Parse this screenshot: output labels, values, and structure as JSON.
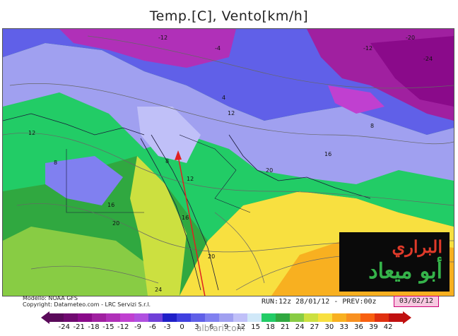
{
  "title": "Temp.[C], Vento[km/h]",
  "credits": {
    "line1": "Modello: NOAA GFS",
    "line2": "Copyright: Datameteo.com - LRC Servizi S.r.l."
  },
  "run_info": "RUN:12z 28/01/12 - PREV:00z",
  "valid_date": "03/02/12",
  "logo": {
    "line1": "البراري",
    "line2": "أبو ميعاد"
  },
  "watermark": "albrari.com",
  "legend": {
    "ticks": [
      "-24",
      "-21",
      "-18",
      "-15",
      "-12",
      "-9",
      "-6",
      "-3",
      "0",
      "3",
      "6",
      "9",
      "12",
      "15",
      "18",
      "21",
      "24",
      "27",
      "30",
      "33",
      "36",
      "39",
      "42"
    ],
    "colors": [
      "#5a0a5a",
      "#700a70",
      "#8a0a8a",
      "#a020a0",
      "#b030b8",
      "#c040d0",
      "#b050e0",
      "#7040d8",
      "#2020c8",
      "#4040e0",
      "#6060e8",
      "#8080f0",
      "#a0a0f0",
      "#c0c0f8",
      "#d0e8f8",
      "#22cc66",
      "#30a840",
      "#88cc44",
      "#cce040",
      "#f8e040",
      "#f8b020",
      "#f89020",
      "#f86010",
      "#e03010",
      "#c01010"
    ]
  },
  "map_labels": [
    {
      "id": "isotherm-4-north",
      "text": "-4"
    },
    {
      "id": "isotherm-12-north",
      "text": "-12"
    },
    {
      "id": "isotherm-20-northeast",
      "text": "-20"
    },
    {
      "id": "isotherm-12-east",
      "text": "-12"
    },
    {
      "id": "isotherm-24-east",
      "text": "-24"
    },
    {
      "id": "isotherm-4-center",
      "text": "4"
    },
    {
      "id": "isotherm-12-center",
      "text": "12"
    },
    {
      "id": "isotherm-8-west",
      "text": "8"
    },
    {
      "id": "isotherm-12-west",
      "text": "12"
    },
    {
      "id": "isotherm-16-sahara",
      "text": "16"
    },
    {
      "id": "isotherm-20-sahara",
      "text": "20"
    },
    {
      "id": "isotherm-8-levant",
      "text": "8"
    },
    {
      "id": "isotherm-12-arabia",
      "text": "12"
    },
    {
      "id": "isotherm-16-arabia",
      "text": "16"
    },
    {
      "id": "isotherm-20-arabia",
      "text": "20"
    },
    {
      "id": "isotherm-24-south",
      "text": "24"
    },
    {
      "id": "isotherm-20-gulf",
      "text": "20"
    },
    {
      "id": "isotherm-16-iran",
      "text": "16"
    },
    {
      "id": "isotherm-8-iran",
      "text": "8"
    }
  ]
}
